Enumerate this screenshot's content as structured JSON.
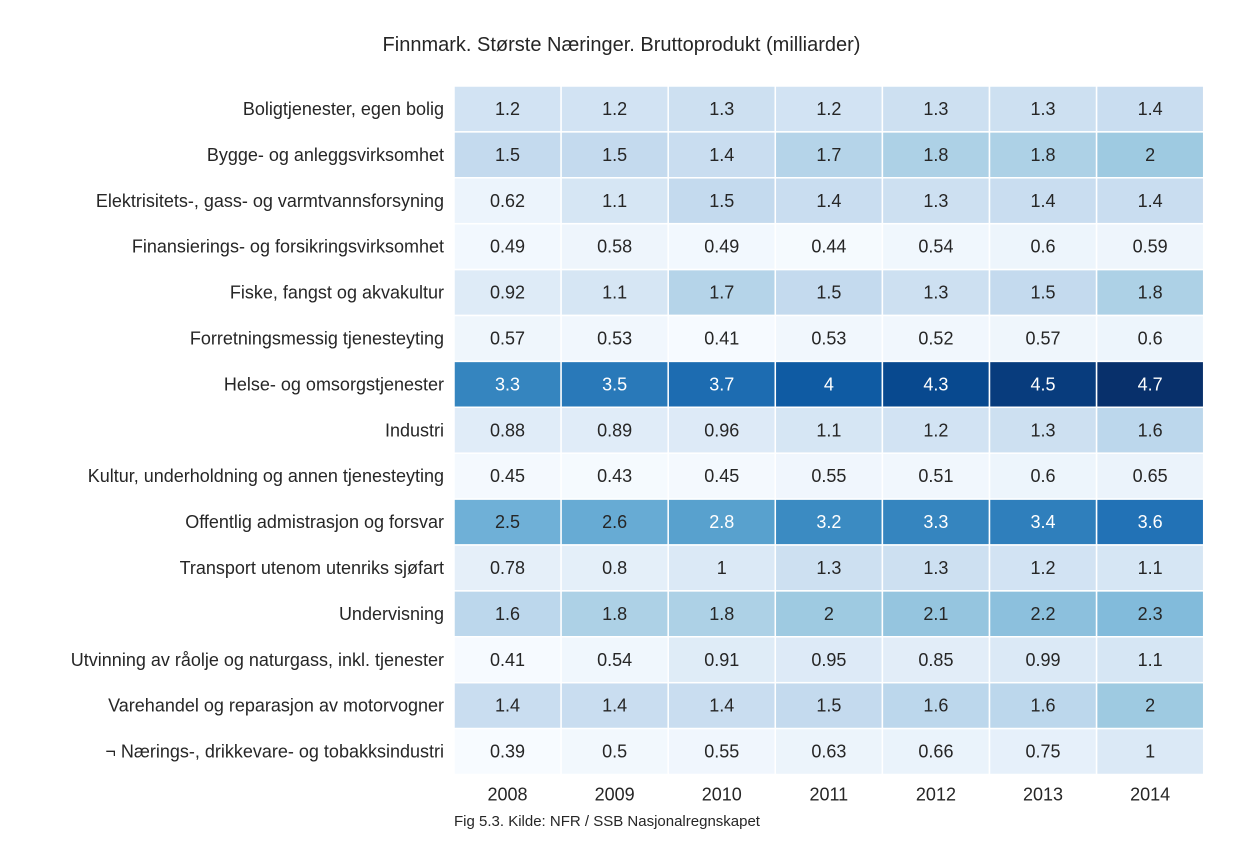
{
  "chart_data": {
    "type": "heatmap",
    "title": "Finnmark. Største Næringer. Bruttoprodukt (milliarder)",
    "caption": "Fig 5.3. Kilde: NFR / SSB Nasjonalregnskapet",
    "x": [
      "2008",
      "2009",
      "2010",
      "2011",
      "2012",
      "2013",
      "2014"
    ],
    "y": [
      "Boligtjenester, egen bolig",
      "Bygge- og anleggsvirksomhet",
      "Elektrisitets-, gass- og varmtvannsforsyning",
      "Finansierings- og forsikringsvirksomhet",
      "Fiske, fangst og akvakultur",
      "Forretningsmessig tjenesteyting",
      "Helse- og omsorgstjenester",
      "Industri",
      "Kultur, underholdning og annen tjenesteyting",
      "Offentlig admistrasjon og forsvar",
      "Transport utenom utenriks sjøfart",
      "Undervisning",
      "Utvinning av råolje og naturgass, inkl. tjenester",
      "Varehandel og reparasjon av motorvogner",
      "¬ Nærings-, drikkevare- og tobakksindustri"
    ],
    "values": [
      [
        "1.2",
        "1.2",
        "1.3",
        "1.2",
        "1.3",
        "1.3",
        "1.4"
      ],
      [
        "1.5",
        "1.5",
        "1.4",
        "1.7",
        "1.8",
        "1.8",
        "2"
      ],
      [
        "0.62",
        "1.1",
        "1.5",
        "1.4",
        "1.3",
        "1.4",
        "1.4"
      ],
      [
        "0.49",
        "0.58",
        "0.49",
        "0.44",
        "0.54",
        "0.6",
        "0.59"
      ],
      [
        "0.92",
        "1.1",
        "1.7",
        "1.5",
        "1.3",
        "1.5",
        "1.8"
      ],
      [
        "0.57",
        "0.53",
        "0.41",
        "0.53",
        "0.52",
        "0.57",
        "0.6"
      ],
      [
        "3.3",
        "3.5",
        "3.7",
        "4",
        "4.3",
        "4.5",
        "4.7"
      ],
      [
        "0.88",
        "0.89",
        "0.96",
        "1.1",
        "1.2",
        "1.3",
        "1.6"
      ],
      [
        "0.45",
        "0.43",
        "0.45",
        "0.55",
        "0.51",
        "0.6",
        "0.65"
      ],
      [
        "2.5",
        "2.6",
        "2.8",
        "3.2",
        "3.3",
        "3.4",
        "3.6"
      ],
      [
        "0.78",
        "0.8",
        "1",
        "1.3",
        "1.3",
        "1.2",
        "1.1"
      ],
      [
        "1.6",
        "1.8",
        "1.8",
        "2",
        "2.1",
        "2.2",
        "2.3"
      ],
      [
        "0.41",
        "0.54",
        "0.91",
        "0.95",
        "0.85",
        "0.99",
        "1.1"
      ],
      [
        "1.4",
        "1.4",
        "1.4",
        "1.5",
        "1.6",
        "1.6",
        "2"
      ],
      [
        "0.39",
        "0.5",
        "0.55",
        "0.63",
        "0.66",
        "0.75",
        "1"
      ]
    ],
    "colormap": "Blues",
    "grid": false,
    "legend": "none"
  }
}
